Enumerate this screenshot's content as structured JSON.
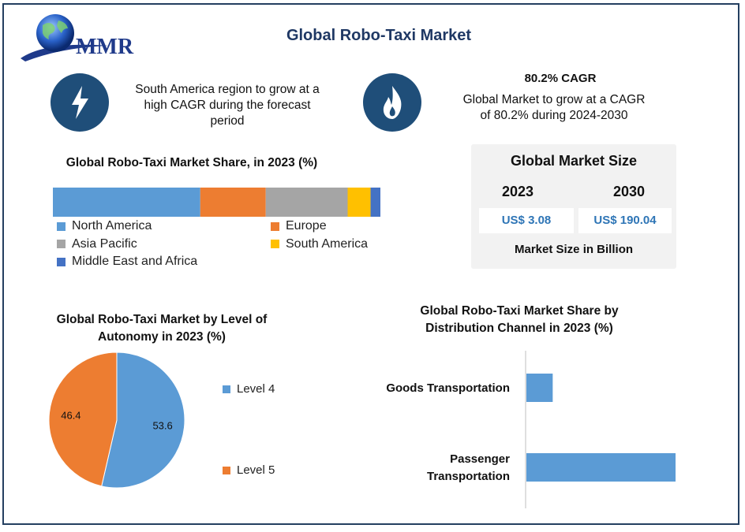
{
  "header": {
    "logo_text": "MMR",
    "title": "Global Robo-Taxi Market"
  },
  "info_left": {
    "icon": "lightning-icon",
    "text": "South America region to grow at a high CAGR during the forecast period"
  },
  "info_right": {
    "icon": "flame-icon",
    "title": "80.2% CAGR",
    "text": "Global Market to grow at a CAGR of 80.2% during 2024-2030"
  },
  "market_size": {
    "title": "Global Market Size",
    "year_a": "2023",
    "year_b": "2030",
    "value_a": "US$ 3.08",
    "value_b": "US$ 190.04",
    "caption": "Market Size in Billion"
  },
  "chart_data": [
    {
      "type": "bar",
      "orientation": "horizontal-stacked",
      "title": "Global Robo-Taxi Market Share, in 2023 (%)",
      "legend_position": "bottom",
      "series": [
        {
          "name": "North America",
          "value": 45,
          "color": "#5b9bd5"
        },
        {
          "name": "Europe",
          "value": 20,
          "color": "#ed7d31"
        },
        {
          "name": "Asia Pacific",
          "value": 25,
          "color": "#a5a5a5"
        },
        {
          "name": "South America",
          "value": 7,
          "color": "#ffc000"
        },
        {
          "name": "Middle East and Africa",
          "value": 3,
          "color": "#4472c4"
        }
      ]
    },
    {
      "type": "pie",
      "title": "Global Robo-Taxi Market by Level of Autonomy in 2023 (%)",
      "legend_position": "right",
      "slices": [
        {
          "name": "Level 4",
          "value": 53.6,
          "label": "53.6",
          "color": "#5b9bd5"
        },
        {
          "name": "Level 5",
          "value": 46.4,
          "label": "46.4",
          "color": "#ed7d31"
        }
      ]
    },
    {
      "type": "bar",
      "orientation": "horizontal",
      "title": "Global Robo-Taxi Market Share by Distribution Channel in 2023 (%)",
      "categories": [
        "Goods Transportation",
        "Passenger Transportation"
      ],
      "category_lines": [
        [
          "Goods Transportation"
        ],
        [
          "Passenger",
          "Transportation"
        ]
      ],
      "values": [
        15,
        85
      ],
      "xlim": [
        0,
        85
      ],
      "color": "#5b9bd5"
    }
  ]
}
